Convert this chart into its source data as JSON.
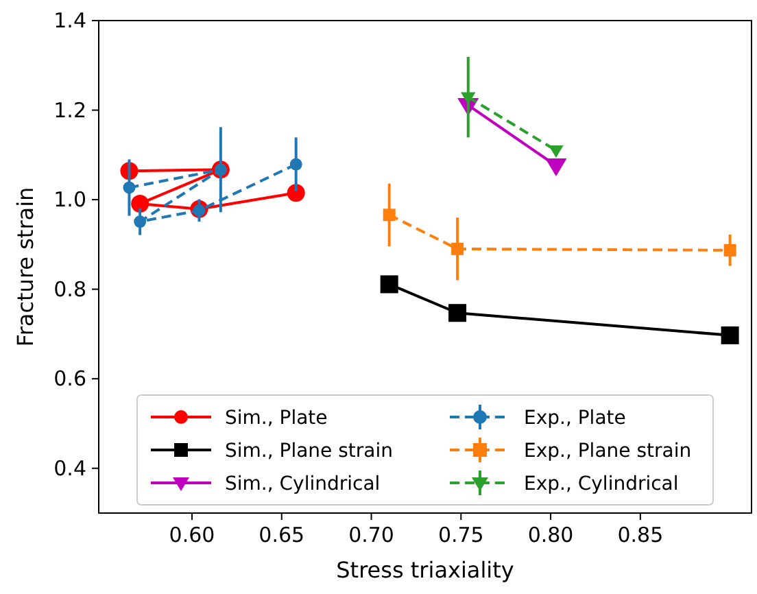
{
  "chart_data": {
    "type": "line",
    "xlabel": "Stress triaxiality",
    "ylabel": "Fracture strain",
    "xlim": [
      0.548,
      0.912
    ],
    "ylim": [
      0.3,
      1.4
    ],
    "xticks": [
      {
        "value": 0.6,
        "label": "0.60"
      },
      {
        "value": 0.65,
        "label": "0.65"
      },
      {
        "value": 0.7,
        "label": "0.70"
      },
      {
        "value": 0.75,
        "label": "0.75"
      },
      {
        "value": 0.8,
        "label": "0.80"
      },
      {
        "value": 0.85,
        "label": "0.85"
      }
    ],
    "yticks": [
      0.4,
      0.6,
      0.8,
      {
        "value": 1.0,
        "label": "1.0"
      },
      1.2,
      1.4
    ],
    "grid": false,
    "legend": "bottom",
    "series": [
      {
        "name": "Sim., Plate",
        "color": "#ff0000",
        "marker": "circle",
        "line_style": "solid",
        "x": [
          0.565,
          0.616,
          0.571,
          0.604,
          0.658
        ],
        "values": [
          1.064,
          1.067,
          0.991,
          0.979,
          1.015
        ]
      },
      {
        "name": "Sim., Plane strain",
        "color": "#000000",
        "marker": "square",
        "line_style": "solid",
        "x": [
          0.71,
          0.748,
          0.9
        ],
        "values": [
          0.811,
          0.747,
          0.697
        ]
      },
      {
        "name": "Sim., Cylindrical",
        "color": "#bf00bf",
        "marker": "triangle",
        "line_style": "solid",
        "x": [
          0.754,
          0.803
        ],
        "values": [
          1.211,
          1.076
        ]
      },
      {
        "name": "Exp., Plate",
        "color": "#1f77b4",
        "marker": "circle",
        "line_style": "dashed",
        "x": [
          0.565,
          0.616,
          0.571,
          0.604,
          0.658
        ],
        "values": [
          1.027,
          1.067,
          0.951,
          0.976,
          1.079
        ],
        "errors": [
          0.063,
          0.095,
          0.03,
          0.025,
          0.06
        ]
      },
      {
        "name": "Exp., Plane strain",
        "color": "#ff7f0e",
        "marker": "square",
        "line_style": "dashed",
        "x": [
          0.71,
          0.748,
          0.9
        ],
        "values": [
          0.966,
          0.89,
          0.887
        ],
        "errors": [
          0.07,
          0.07,
          0.035
        ]
      },
      {
        "name": "Exp., Cylindrical",
        "color": "#2ca02c",
        "marker": "triangle",
        "line_style": "dashed",
        "x": [
          0.754,
          0.803
        ],
        "values": [
          1.229,
          1.11
        ],
        "errors": [
          0.09,
          null
        ]
      }
    ]
  }
}
